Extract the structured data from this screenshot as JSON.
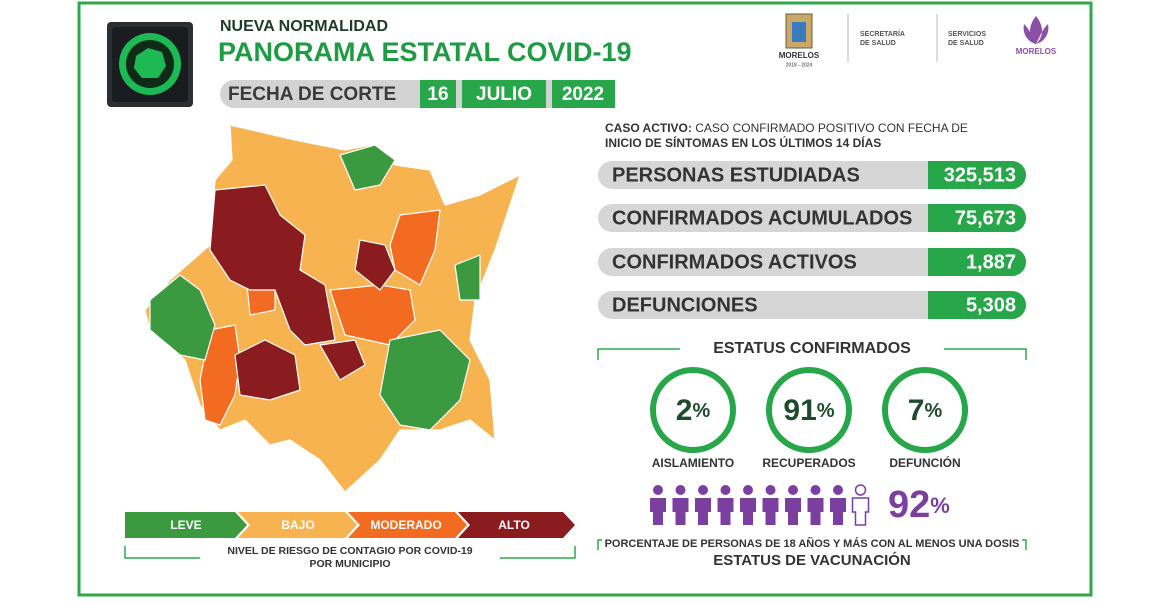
{
  "header": {
    "subtitle": "NUEVA NORMALIDAD",
    "title": "PANORAMA ESTATAL COVID-19",
    "date_label": "FECHA DE CORTE",
    "day": "16",
    "month": "JULIO",
    "year": "2022"
  },
  "logos": {
    "state": "MORELOS",
    "state_years": "2018 - 2024",
    "secretaria": [
      "SECRETARÍA",
      "DE SALUD"
    ],
    "servicios": [
      "SERVICIOS",
      "DE SALUD"
    ],
    "brand": "MORELOS"
  },
  "definition": {
    "term": "CASO ACTIVO:",
    "lines": [
      "CASO CONFIRMADO POSITIVO CON FECHA DE",
      "INICIO DE SÍNTOMAS EN LOS ÚLTIMOS 14 DÍAS"
    ]
  },
  "stats": [
    {
      "label": "PERSONAS ESTUDIADAS",
      "value": "325,513"
    },
    {
      "label": "CONFIRMADOS ACUMULADOS",
      "value": "75,673"
    },
    {
      "label": "CONFIRMADOS ACTIVOS",
      "value": "1,887"
    },
    {
      "label": "DEFUNCIONES",
      "value": "5,308"
    }
  ],
  "status": {
    "title": "ESTATUS CONFIRMADOS",
    "items": [
      {
        "value": 2,
        "unit": "%",
        "label": "AISLAMIENTO"
      },
      {
        "value": 91,
        "unit": "%",
        "label": "RECUPERADOS"
      },
      {
        "value": 7,
        "unit": "%",
        "label": "DEFUNCIÓN"
      }
    ]
  },
  "vaccination": {
    "value": 92,
    "unit": "%",
    "caption": "PORCENTAJE DE PERSONAS DE 18 AÑOS Y MÁS CON AL MENOS UNA DOSIS",
    "title": "ESTATUS DE VACUNACIÓN"
  },
  "legend": {
    "levels": [
      "LEVE",
      "BAJO",
      "MODERADO",
      "ALTO"
    ],
    "caption": [
      "NIVEL DE RIESGO DE CONTAGIO POR COVID-19",
      "POR MUNICIPIO"
    ]
  }
}
